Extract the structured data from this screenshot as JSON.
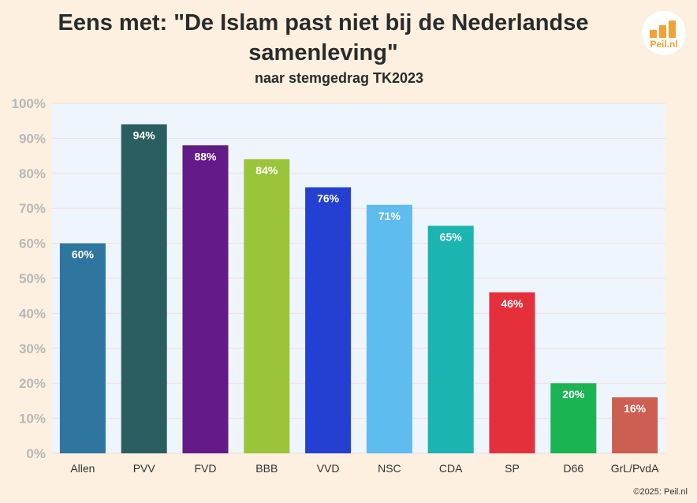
{
  "chart_data": {
    "type": "bar",
    "title": "Eens met: \"De Islam past niet bij de Nederlandse samenleving\"",
    "subtitle": "naar stemgedrag TK2023",
    "categories": [
      "Allen",
      "PVV",
      "FVD",
      "BBB",
      "VVD",
      "NSC",
      "CDA",
      "SP",
      "D66",
      "GrL/PvdA"
    ],
    "values": [
      60,
      94,
      88,
      84,
      76,
      71,
      65,
      46,
      20,
      16
    ],
    "value_labels": [
      "60%",
      "94%",
      "88%",
      "84%",
      "76%",
      "71%",
      "65%",
      "46%",
      "20%",
      "16%"
    ],
    "colors": [
      "#2e76a0",
      "#2a5e60",
      "#641a88",
      "#9cc43a",
      "#2340d2",
      "#5fbcee",
      "#1bb4b0",
      "#e5303c",
      "#1ab452",
      "#cc5e52"
    ],
    "ylim": [
      0,
      100
    ],
    "yticks": [
      "0%",
      "10%",
      "20%",
      "30%",
      "40%",
      "50%",
      "60%",
      "70%",
      "80%",
      "90%",
      "100%"
    ],
    "xlabel": "",
    "ylabel": "",
    "grid": true,
    "legend": "none"
  },
  "logo": {
    "text": "Peil.nl"
  },
  "footer": {
    "copyright": "©2025: Peil.nl"
  }
}
